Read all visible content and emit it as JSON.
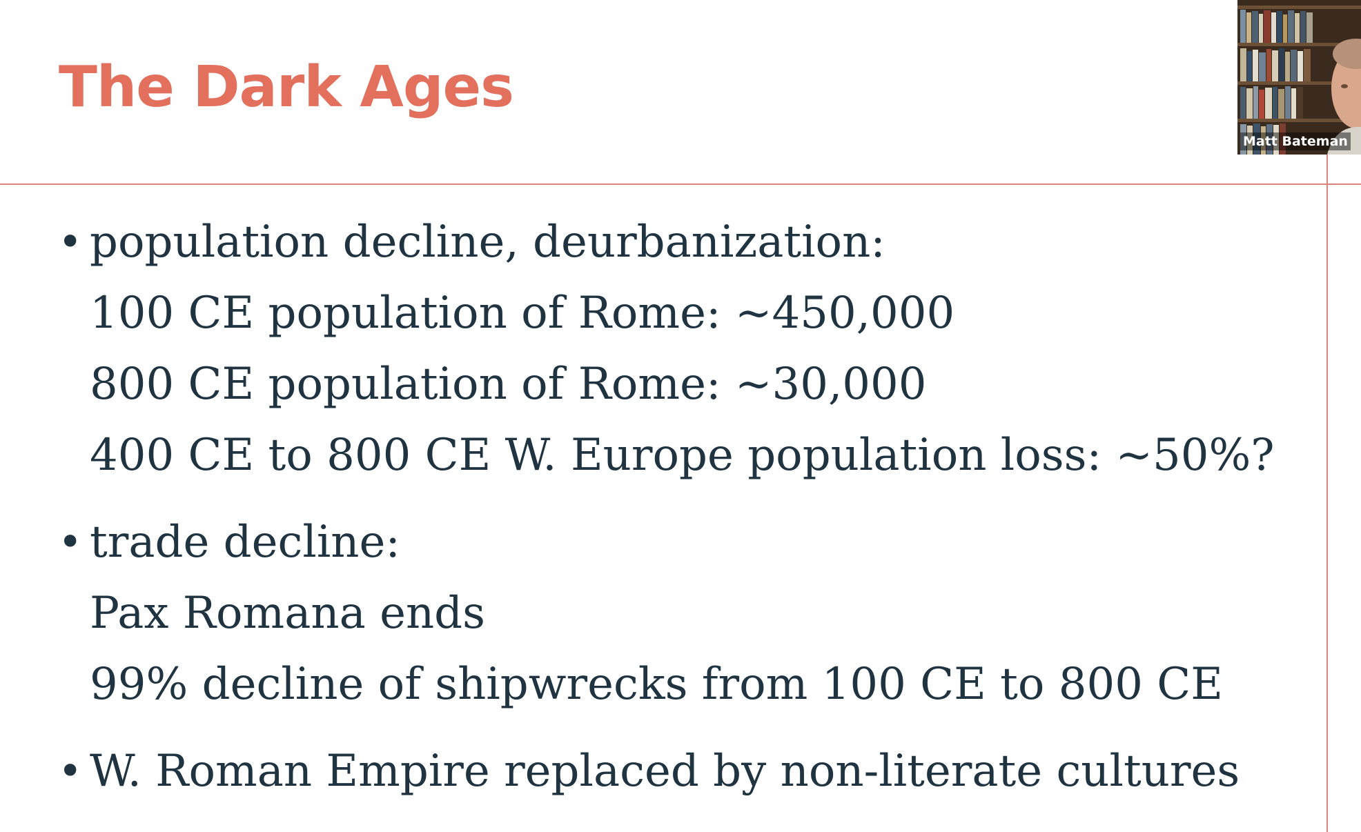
{
  "slide": {
    "title": "The Dark Ages",
    "title_color": "#e36f5d",
    "rule_color": "#d9827a",
    "bullets": [
      {
        "lines": [
          "population decline, deurbanization:",
          "100 CE population of Rome: ~450,000",
          "800 CE population of Rome: ~30,000",
          "400 CE to 800 CE W. Europe population loss: ~50%?"
        ]
      },
      {
        "lines": [
          "trade decline:",
          "Pax Romana ends",
          "99% decline of shipwrecks from 100 CE to 800 CE"
        ]
      },
      {
        "lines": [
          "W. Roman Empire replaced by non-literate cultures"
        ]
      }
    ],
    "bullet_symbol": "•"
  },
  "video": {
    "participant_name": "Matt Bateman"
  }
}
